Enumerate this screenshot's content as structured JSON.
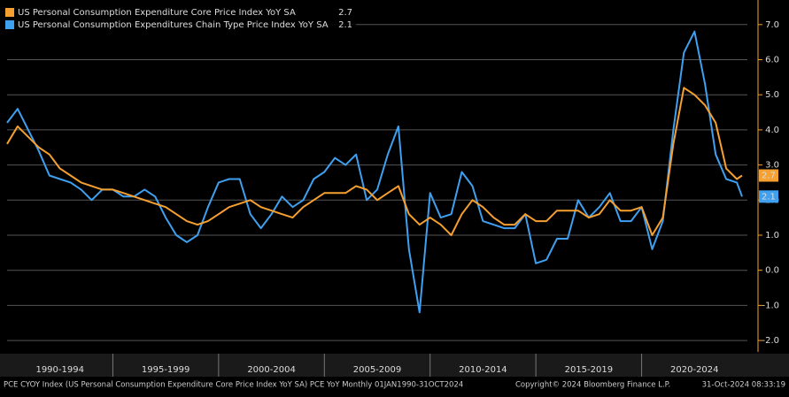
{
  "chart_data": {
    "type": "line",
    "x": [
      1990.0,
      1990.5,
      1991.0,
      1991.5,
      1992.0,
      1992.5,
      1993.0,
      1993.5,
      1994.0,
      1994.5,
      1995.0,
      1995.5,
      1996.0,
      1996.5,
      1997.0,
      1997.5,
      1998.0,
      1998.5,
      1999.0,
      1999.5,
      2000.0,
      2000.5,
      2001.0,
      2001.5,
      2002.0,
      2002.5,
      2003.0,
      2003.5,
      2004.0,
      2004.5,
      2005.0,
      2005.5,
      2006.0,
      2006.5,
      2007.0,
      2007.5,
      2008.0,
      2008.5,
      2009.0,
      2009.5,
      2010.0,
      2010.5,
      2011.0,
      2011.5,
      2012.0,
      2012.5,
      2013.0,
      2013.5,
      2014.0,
      2014.5,
      2015.0,
      2015.5,
      2016.0,
      2016.5,
      2017.0,
      2017.5,
      2018.0,
      2018.5,
      2019.0,
      2019.5,
      2020.0,
      2020.5,
      2021.0,
      2021.5,
      2022.0,
      2022.5,
      2023.0,
      2023.5,
      2024.0,
      2024.5,
      2024.75
    ],
    "series": [
      {
        "name": "US Personal Consumption Expenditure Core Price Index YoY SA",
        "last_value": 2.7,
        "color": "#f5a030",
        "values": [
          3.6,
          4.1,
          3.8,
          3.5,
          3.3,
          2.9,
          2.7,
          2.5,
          2.4,
          2.3,
          2.3,
          2.2,
          2.1,
          2.0,
          1.9,
          1.8,
          1.6,
          1.4,
          1.3,
          1.4,
          1.6,
          1.8,
          1.9,
          2.0,
          1.8,
          1.7,
          1.6,
          1.5,
          1.8,
          2.0,
          2.2,
          2.2,
          2.2,
          2.4,
          2.3,
          2.0,
          2.2,
          2.4,
          1.6,
          1.3,
          1.5,
          1.3,
          1.0,
          1.6,
          2.0,
          1.8,
          1.5,
          1.3,
          1.3,
          1.6,
          1.4,
          1.4,
          1.7,
          1.7,
          1.7,
          1.5,
          1.6,
          2.0,
          1.7,
          1.7,
          1.8,
          1.0,
          1.5,
          3.6,
          5.2,
          5.0,
          4.7,
          4.2,
          2.9,
          2.6,
          2.7
        ]
      },
      {
        "name": "US Personal Consumption Expenditures Chain Type Price Index YoY SA",
        "last_value": 2.1,
        "color": "#3fa0f0",
        "values": [
          4.2,
          4.6,
          4.0,
          3.4,
          2.7,
          2.6,
          2.5,
          2.3,
          2.0,
          2.3,
          2.3,
          2.1,
          2.1,
          2.3,
          2.1,
          1.5,
          1.0,
          0.8,
          1.0,
          1.8,
          2.5,
          2.6,
          2.6,
          1.6,
          1.2,
          1.6,
          2.1,
          1.8,
          2.0,
          2.6,
          2.8,
          3.2,
          3.0,
          3.3,
          2.0,
          2.3,
          3.3,
          4.1,
          0.6,
          -1.2,
          2.2,
          1.5,
          1.6,
          2.8,
          2.4,
          1.4,
          1.3,
          1.2,
          1.2,
          1.6,
          0.2,
          0.3,
          0.9,
          0.9,
          2.0,
          1.5,
          1.8,
          2.2,
          1.4,
          1.4,
          1.8,
          0.6,
          1.4,
          4.0,
          6.2,
          6.8,
          5.3,
          3.3,
          2.6,
          2.5,
          2.1
        ]
      }
    ],
    "xlim": [
      1990,
      2025
    ],
    "xticks": [
      {
        "value": 1992.5,
        "label": "1990-1994"
      },
      {
        "value": 1997.5,
        "label": "1995-1999"
      },
      {
        "value": 2002.5,
        "label": "2000-2004"
      },
      {
        "value": 2007.5,
        "label": "2005-2009"
      },
      {
        "value": 2012.5,
        "label": "2010-2014"
      },
      {
        "value": 2017.5,
        "label": "2015-2019"
      },
      {
        "value": 2022.5,
        "label": "2020-2024"
      }
    ],
    "xdividers": [
      1995,
      2000,
      2005,
      2010,
      2015,
      2020
    ],
    "ylim": [
      -2.3,
      7.7
    ],
    "yticks": [
      {
        "value": -2,
        "label": "-2.0"
      },
      {
        "value": -1,
        "label": "-1.0"
      },
      {
        "value": 0,
        "label": "0.0"
      },
      {
        "value": 1,
        "label": "1.0"
      },
      {
        "value": 2,
        "label": "2.0"
      },
      {
        "value": 3,
        "label": "3.0"
      },
      {
        "value": 4,
        "label": "4.0"
      },
      {
        "value": 5,
        "label": "5.0"
      },
      {
        "value": 6,
        "label": "6.0"
      },
      {
        "value": 7,
        "label": "7.0"
      }
    ],
    "grid": true,
    "legend": "top-left",
    "footer": {
      "source": "PCE CYOY Index (US Personal Consumption Expenditure Core Price Index YoY SA) PCE YoY  Monthly 01JAN1990-31OCT2024",
      "copyright": "Copyright© 2024 Bloomberg Finance L.P.",
      "timestamp": "31-Oct-2024 08:33:19"
    }
  }
}
